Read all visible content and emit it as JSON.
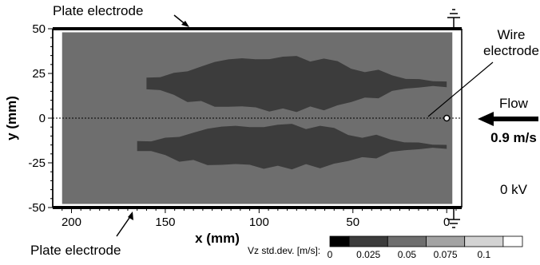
{
  "chart_data": {
    "type": "heatmap",
    "title": "",
    "xlabel": "x (mm)",
    "ylabel": "y (mm)",
    "xlim": [
      210,
      -8
    ],
    "ylim": [
      -50,
      50
    ],
    "x_ticks": [
      "200",
      "150",
      "100",
      "50",
      "0"
    ],
    "x_tick_values": [
      200,
      150,
      100,
      50,
      0
    ],
    "y_ticks": [
      "50",
      "25",
      "0",
      "-25",
      "-50"
    ],
    "y_tick_values": [
      50,
      25,
      0,
      -25,
      -50
    ],
    "colorbar": {
      "label": "Vz std.dev. [m/s]:",
      "ticks": [
        "0",
        "0.025",
        "0.05",
        "0.075",
        "0.1"
      ],
      "bins": [
        {
          "from": 0,
          "to": 0.0125,
          "color": "#000000"
        },
        {
          "from": 0.0125,
          "to": 0.0375,
          "color": "#3c3c3c"
        },
        {
          "from": 0.0375,
          "to": 0.0625,
          "color": "#6e6e6e"
        },
        {
          "from": 0.0625,
          "to": 0.0875,
          "color": "#a3a3a3"
        },
        {
          "from": 0.0875,
          "to": 0.1125,
          "color": "#d3d3d3"
        },
        {
          "from": 0.1125,
          "to": 0.125,
          "color": "#ffffff"
        }
      ]
    },
    "regions": [
      {
        "name": "background",
        "level": 0.05,
        "x_range": [
          205,
          -3
        ],
        "y_range": [
          -48,
          48
        ]
      },
      {
        "name": "upper-low-band",
        "level": 0.025,
        "x_range": [
          160,
          0
        ],
        "y_range": [
          4,
          34
        ]
      },
      {
        "name": "lower-low-band",
        "level": 0.025,
        "x_range": [
          165,
          0
        ],
        "y_range": [
          -28,
          -4
        ]
      }
    ],
    "centerline_y": 0
  },
  "annotations": {
    "plate_top": "Plate electrode",
    "plate_bottom": "Plate electrode",
    "wire_line1": "Wire",
    "wire_line2": "electrode",
    "flow": "Flow",
    "speed": "0.9 m/s",
    "voltage": "0 kV"
  },
  "colors": {
    "frame": "#000000",
    "field_background": "#6e6e6e",
    "low_region": "#3c3c3c"
  }
}
